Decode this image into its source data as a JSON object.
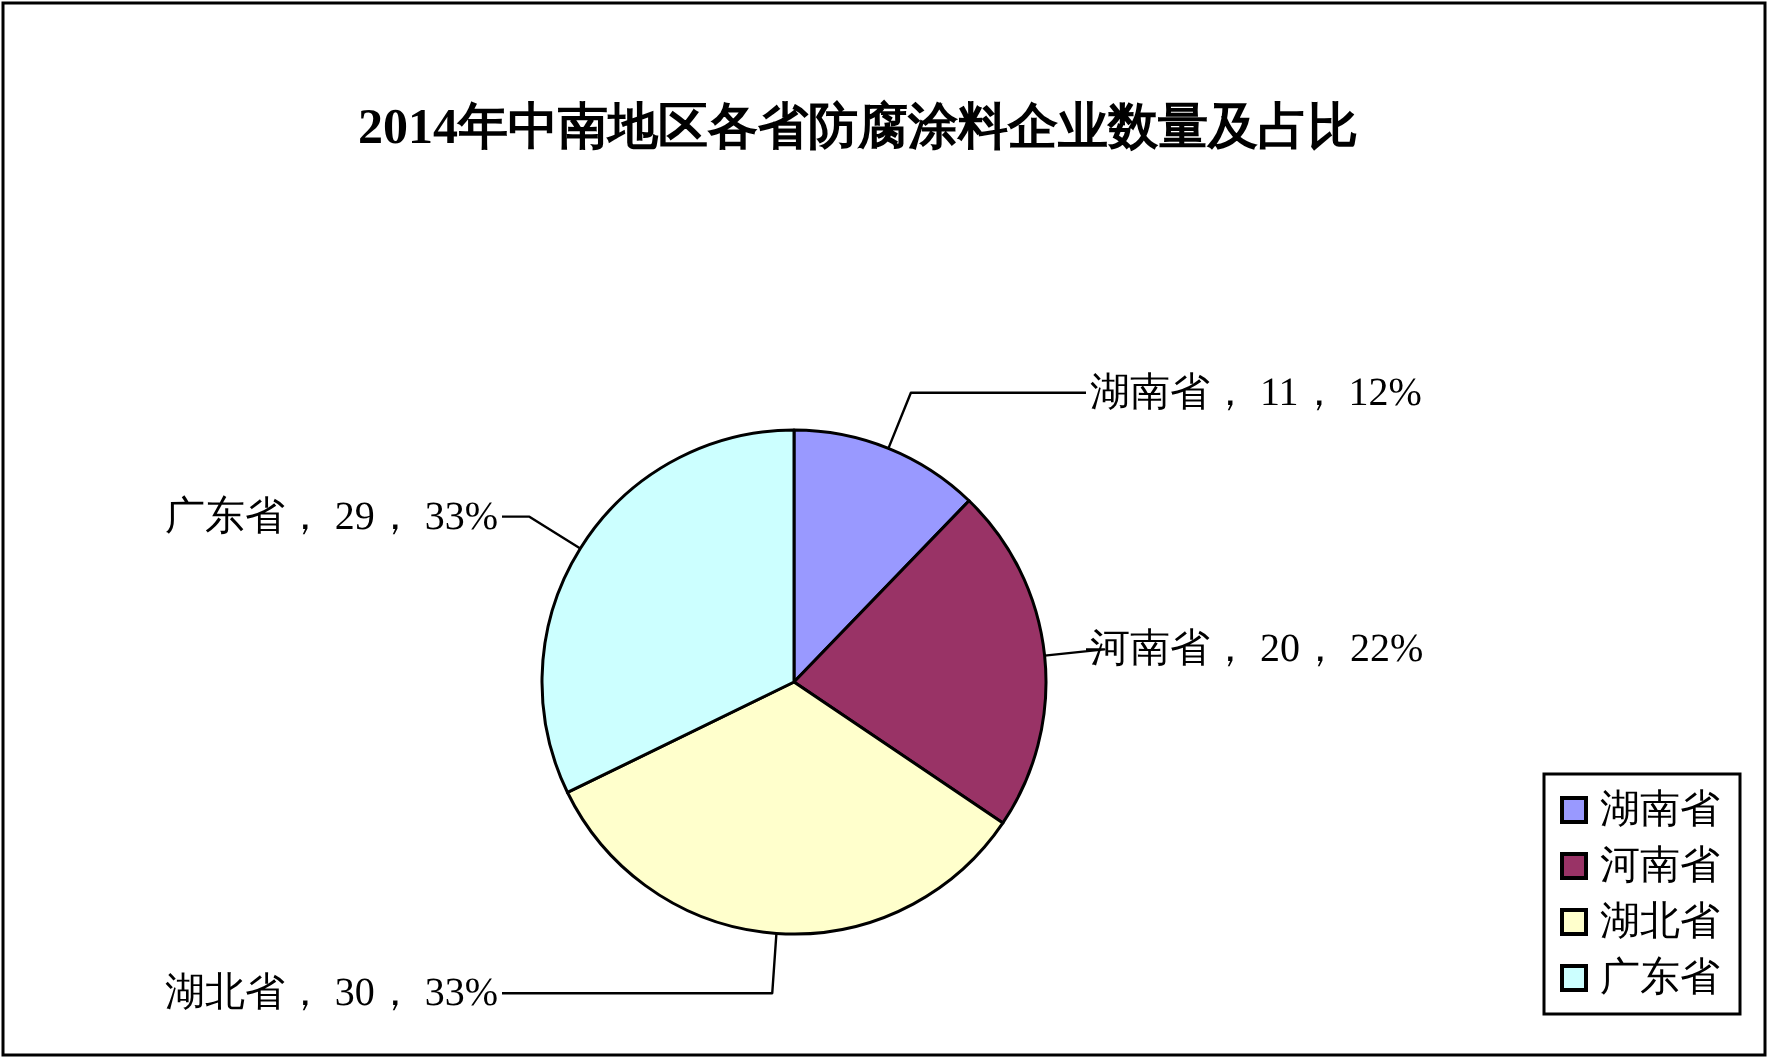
{
  "chart_data": {
    "type": "pie",
    "title": "2014年中南地区各省防腐涂料企业数量及占比",
    "categories": [
      "湖南省",
      "河南省",
      "湖北省",
      "广东省"
    ],
    "values": [
      11,
      20,
      30,
      29
    ],
    "colors": [
      "#9999ff",
      "#993366",
      "#ffffcc",
      "#ccffff"
    ],
    "value_labels": [
      "湖南省， 11， 12%",
      "河南省， 20， 22%",
      "湖北省， 30， 33%",
      "广东省， 29， 33%"
    ],
    "legend": "bottom right"
  }
}
